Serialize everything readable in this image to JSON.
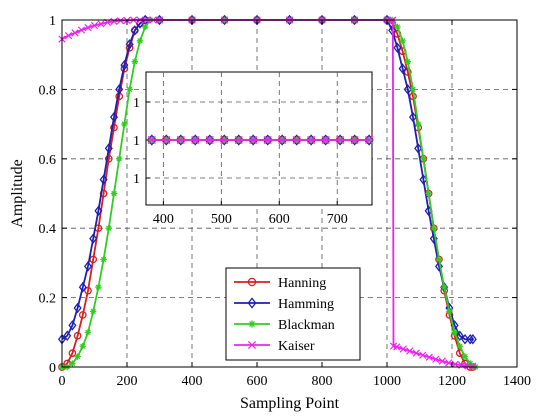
{
  "chart_data": {
    "type": "line",
    "title": "",
    "xlabel": "Sampling Point",
    "ylabel": "Amplitude",
    "xlim": [
      0,
      1400
    ],
    "ylim": [
      0,
      1
    ],
    "xticks": [
      0,
      200,
      400,
      600,
      800,
      1000,
      1200,
      1400
    ],
    "yticks": [
      0,
      0.2,
      0.4,
      0.6,
      0.8,
      1
    ],
    "ytick_labels": [
      "0",
      "0.2",
      "0.4",
      "0.6",
      "0.8",
      "1"
    ],
    "grid": true,
    "legend_position": "bottom-center",
    "series": [
      {
        "name": "Hanning",
        "color": "#d42020",
        "marker": "circle",
        "x": [
          0,
          16,
          32,
          48,
          64,
          80,
          96,
          112,
          128,
          144,
          160,
          176,
          192,
          208,
          224,
          240,
          256,
          300,
          400,
          500,
          600,
          700,
          800,
          900,
          1000,
          1016,
          1032,
          1048,
          1064,
          1080,
          1096,
          1112,
          1128,
          1144,
          1160,
          1176,
          1192,
          1208,
          1224,
          1240,
          1256,
          1264
        ],
        "y": [
          0.0,
          0.01,
          0.04,
          0.09,
          0.15,
          0.22,
          0.31,
          0.4,
          0.5,
          0.6,
          0.69,
          0.78,
          0.86,
          0.92,
          0.97,
          0.99,
          1,
          1,
          1,
          1,
          1,
          1,
          1,
          1,
          1,
          0.99,
          0.96,
          0.91,
          0.85,
          0.78,
          0.69,
          0.6,
          0.5,
          0.4,
          0.31,
          0.22,
          0.15,
          0.09,
          0.04,
          0.01,
          0.0,
          0.0
        ]
      },
      {
        "name": "Hamming",
        "color": "#1f1fb4",
        "marker": "diamond",
        "x": [
          0,
          16,
          32,
          48,
          64,
          80,
          96,
          112,
          128,
          144,
          160,
          176,
          192,
          208,
          224,
          240,
          256,
          300,
          400,
          500,
          600,
          700,
          800,
          900,
          1000,
          1016,
          1032,
          1048,
          1064,
          1080,
          1096,
          1112,
          1128,
          1144,
          1160,
          1176,
          1192,
          1208,
          1224,
          1240,
          1256,
          1264
        ],
        "y": [
          0.08,
          0.09,
          0.12,
          0.17,
          0.23,
          0.29,
          0.37,
          0.45,
          0.54,
          0.63,
          0.72,
          0.8,
          0.87,
          0.93,
          0.97,
          0.99,
          1,
          1,
          1,
          1,
          1,
          1,
          1,
          1,
          1,
          0.97,
          0.92,
          0.86,
          0.8,
          0.72,
          0.63,
          0.54,
          0.45,
          0.37,
          0.29,
          0.23,
          0.17,
          0.12,
          0.09,
          0.08,
          0.08,
          0.08
        ]
      },
      {
        "name": "Blackman",
        "color": "#33cc22",
        "marker": "star",
        "x": [
          0,
          16,
          32,
          48,
          64,
          80,
          96,
          112,
          128,
          144,
          160,
          176,
          192,
          208,
          224,
          240,
          256,
          272,
          300,
          400,
          500,
          600,
          700,
          800,
          900,
          1000,
          1016,
          1032,
          1048,
          1064,
          1080,
          1096,
          1112,
          1128,
          1144,
          1160,
          1176,
          1192,
          1208,
          1224,
          1240,
          1256,
          1264,
          1272
        ],
        "y": [
          0.0,
          0.0,
          0.01,
          0.03,
          0.06,
          0.1,
          0.16,
          0.23,
          0.31,
          0.4,
          0.5,
          0.6,
          0.7,
          0.8,
          0.88,
          0.94,
          0.98,
          1,
          1,
          1,
          1,
          1,
          1,
          1,
          1,
          1,
          1,
          0.98,
          0.94,
          0.88,
          0.8,
          0.7,
          0.6,
          0.5,
          0.4,
          0.31,
          0.23,
          0.16,
          0.1,
          0.06,
          0.03,
          0.01,
          0.0,
          0.0
        ]
      },
      {
        "name": "Kaiser",
        "color": "#ee22ee",
        "marker": "x",
        "x": [
          0,
          20,
          40,
          60,
          80,
          100,
          120,
          140,
          160,
          180,
          200,
          220,
          240,
          260,
          280,
          300,
          400,
          500,
          600,
          700,
          800,
          900,
          1000,
          1018,
          1020,
          1030,
          1050,
          1070,
          1090,
          1110,
          1130,
          1150,
          1170,
          1190,
          1210,
          1230,
          1250,
          1264
        ],
        "y": [
          0.945,
          0.955,
          0.963,
          0.971,
          0.978,
          0.984,
          0.989,
          0.993,
          0.996,
          0.998,
          0.999,
          1,
          1,
          1,
          1,
          1,
          1,
          1,
          1,
          1,
          1,
          1,
          1,
          1,
          0.06,
          0.058,
          0.052,
          0.046,
          0.04,
          0.034,
          0.028,
          0.022,
          0.017,
          0.012,
          0.008,
          0.005,
          0.003,
          0.002
        ]
      }
    ],
    "inset": {
      "type": "line",
      "xlim": [
        370,
        760
      ],
      "xticks": [
        400,
        500,
        600,
        700
      ],
      "ytick_labels": [
        "1",
        "1",
        "1"
      ],
      "grid": true,
      "series_y": 1,
      "x_points": [
        380,
        405,
        430,
        455,
        480,
        505,
        530,
        555,
        580,
        605,
        630,
        655,
        680,
        705,
        730,
        755
      ],
      "series": [
        "Hanning",
        "Hamming",
        "Blackman",
        "Kaiser"
      ]
    }
  }
}
